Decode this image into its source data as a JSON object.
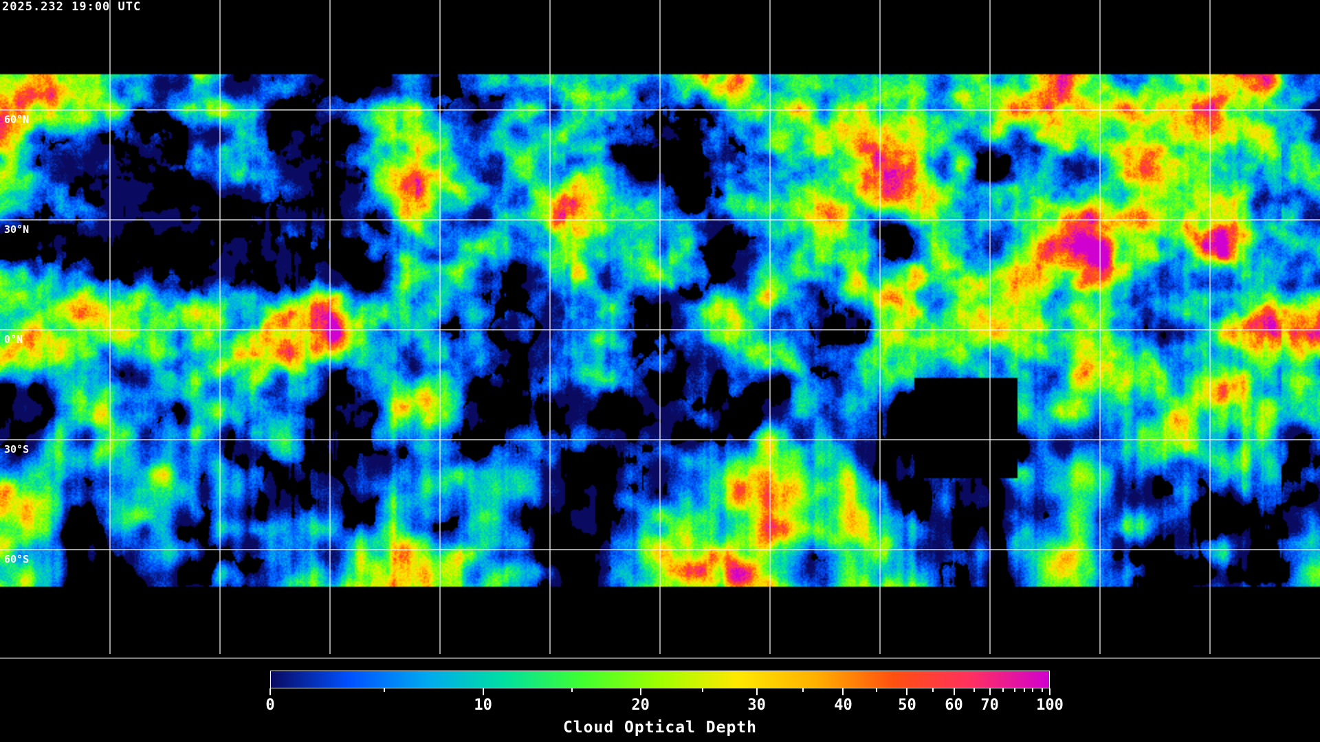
{
  "header": {
    "timestamp": "2025.232 19:00 UTC"
  },
  "map": {
    "projection": "equirectangular",
    "grid_spacing_deg": 30,
    "lat_labels": [
      "60°N",
      "30°N",
      "0°N",
      "30°S",
      "60°S"
    ],
    "gridline_color": "#ffffff",
    "coastline_color": "#ffffff",
    "no_data_color": "#000000"
  },
  "colorbar": {
    "title": "Cloud Optical Depth",
    "min": 0,
    "max": 100,
    "tick_labels": [
      "0",
      "10",
      "20",
      "30",
      "40",
      "50",
      "60",
      "70",
      "100"
    ],
    "colors": [
      "#0a0a60",
      "#0050ff",
      "#00a8f0",
      "#00e0a0",
      "#40ff30",
      "#a0ff00",
      "#ffe800",
      "#ffb000",
      "#ff5010",
      "#ff3060",
      "#d000d0"
    ]
  }
}
